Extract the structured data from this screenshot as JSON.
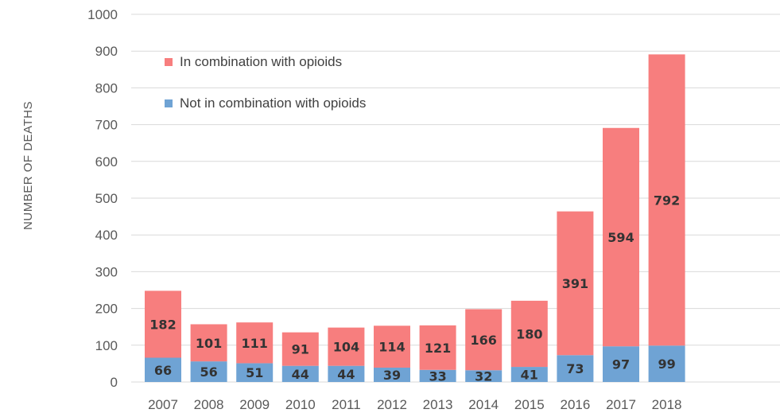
{
  "chart_data": {
    "type": "bar",
    "stacked": true,
    "categories": [
      "2007",
      "2008",
      "2009",
      "2010",
      "2011",
      "2012",
      "2013",
      "2014",
      "2015",
      "2016",
      "2017",
      "2018"
    ],
    "series": [
      {
        "name": "Not in combination with opioids",
        "color": "#6fa3d4",
        "values": [
          66,
          56,
          51,
          44,
          44,
          39,
          33,
          32,
          41,
          73,
          97,
          99
        ]
      },
      {
        "name": "In combination with opioids",
        "color": "#f77e7e",
        "values": [
          182,
          101,
          111,
          91,
          104,
          114,
          121,
          166,
          180,
          391,
          594,
          792
        ]
      }
    ],
    "ylabel": "NUMBER OF DEATHS",
    "xlabel": "",
    "ylim": [
      0,
      1000
    ],
    "yticks": [
      0,
      100,
      200,
      300,
      400,
      500,
      600,
      700,
      800,
      900,
      1000
    ],
    "grid": true,
    "legend_position": "top-left",
    "legend_order": [
      "In combination with opioids",
      "Not in combination with opioids"
    ]
  }
}
